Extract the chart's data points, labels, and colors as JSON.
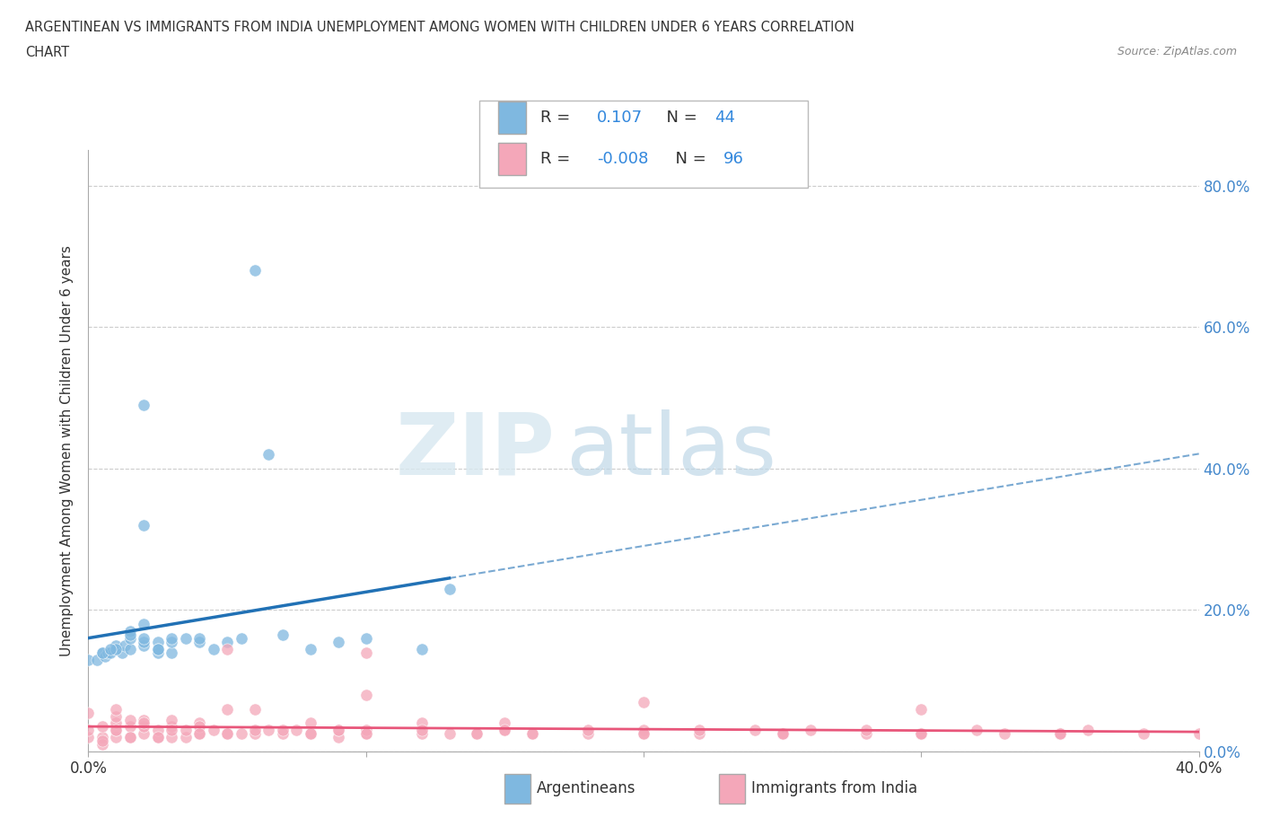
{
  "title_line1": "ARGENTINEAN VS IMMIGRANTS FROM INDIA UNEMPLOYMENT AMONG WOMEN WITH CHILDREN UNDER 6 YEARS CORRELATION",
  "title_line2": "CHART",
  "source": "Source: ZipAtlas.com",
  "ylabel": "Unemployment Among Women with Children Under 6 years",
  "ytick_labels": [
    "0.0%",
    "20.0%",
    "40.0%",
    "60.0%",
    "80.0%"
  ],
  "ytick_values": [
    0.0,
    0.2,
    0.4,
    0.6,
    0.8
  ],
  "xlim": [
    0.0,
    0.4
  ],
  "ylim": [
    0.0,
    0.85
  ],
  "blue_color": "#7fb8e0",
  "pink_color": "#f4a7b9",
  "blue_line_color": "#2171b5",
  "pink_line_color": "#e8567a",
  "watermark_zip": "ZIP",
  "watermark_atlas": "atlas",
  "blue_scatter_x": [
    0.0,
    0.003,
    0.005,
    0.006,
    0.007,
    0.008,
    0.01,
    0.01,
    0.012,
    0.013,
    0.015,
    0.015,
    0.015,
    0.02,
    0.02,
    0.02,
    0.02,
    0.025,
    0.025,
    0.03,
    0.03,
    0.035,
    0.04,
    0.04,
    0.045,
    0.05,
    0.055,
    0.06,
    0.065,
    0.07,
    0.08,
    0.09,
    0.1,
    0.12,
    0.13,
    0.02,
    0.025,
    0.03,
    0.01,
    0.005,
    0.008,
    0.015,
    0.02,
    0.025
  ],
  "blue_scatter_y": [
    0.13,
    0.13,
    0.14,
    0.135,
    0.14,
    0.14,
    0.145,
    0.15,
    0.14,
    0.15,
    0.145,
    0.16,
    0.17,
    0.15,
    0.155,
    0.18,
    0.16,
    0.155,
    0.14,
    0.14,
    0.155,
    0.16,
    0.155,
    0.16,
    0.145,
    0.155,
    0.16,
    0.68,
    0.42,
    0.165,
    0.145,
    0.155,
    0.16,
    0.145,
    0.23,
    0.32,
    0.145,
    0.16,
    0.145,
    0.14,
    0.145,
    0.165,
    0.49,
    0.145
  ],
  "pink_scatter_x": [
    0.0,
    0.0,
    0.0,
    0.005,
    0.005,
    0.005,
    0.01,
    0.01,
    0.01,
    0.01,
    0.01,
    0.015,
    0.015,
    0.015,
    0.02,
    0.02,
    0.02,
    0.025,
    0.025,
    0.03,
    0.03,
    0.03,
    0.035,
    0.035,
    0.04,
    0.04,
    0.045,
    0.05,
    0.05,
    0.055,
    0.06,
    0.065,
    0.07,
    0.075,
    0.08,
    0.09,
    0.09,
    0.1,
    0.1,
    0.12,
    0.13,
    0.14,
    0.15,
    0.16,
    0.18,
    0.2,
    0.22,
    0.24,
    0.25,
    0.26,
    0.28,
    0.3,
    0.32,
    0.33,
    0.35,
    0.36,
    0.38,
    0.04,
    0.06,
    0.08,
    0.1,
    0.12,
    0.14,
    0.16,
    0.2,
    0.25,
    0.3,
    0.35,
    0.005,
    0.01,
    0.015,
    0.02,
    0.025,
    0.03,
    0.04,
    0.05,
    0.06,
    0.07,
    0.08,
    0.09,
    0.1,
    0.12,
    0.15,
    0.18,
    0.2,
    0.22,
    0.25,
    0.28,
    0.3,
    0.35,
    0.4,
    0.05,
    0.1,
    0.15,
    0.2,
    0.3
  ],
  "pink_scatter_y": [
    0.02,
    0.03,
    0.055,
    0.02,
    0.035,
    0.01,
    0.02,
    0.03,
    0.04,
    0.05,
    0.06,
    0.02,
    0.035,
    0.045,
    0.025,
    0.035,
    0.045,
    0.02,
    0.03,
    0.02,
    0.035,
    0.045,
    0.02,
    0.03,
    0.025,
    0.04,
    0.03,
    0.025,
    0.145,
    0.025,
    0.025,
    0.03,
    0.025,
    0.03,
    0.025,
    0.02,
    0.03,
    0.025,
    0.03,
    0.025,
    0.025,
    0.025,
    0.03,
    0.025,
    0.025,
    0.03,
    0.025,
    0.03,
    0.025,
    0.03,
    0.025,
    0.025,
    0.03,
    0.025,
    0.025,
    0.03,
    0.025,
    0.035,
    0.06,
    0.04,
    0.14,
    0.04,
    0.025,
    0.025,
    0.025,
    0.025,
    0.025,
    0.025,
    0.015,
    0.03,
    0.02,
    0.04,
    0.02,
    0.03,
    0.025,
    0.025,
    0.03,
    0.03,
    0.025,
    0.03,
    0.025,
    0.03,
    0.04,
    0.03,
    0.025,
    0.03,
    0.025,
    0.03,
    0.025,
    0.025,
    0.025,
    0.06,
    0.08,
    0.03,
    0.07,
    0.06
  ]
}
